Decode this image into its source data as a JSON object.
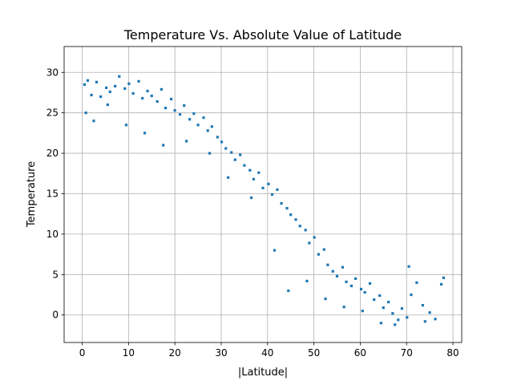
{
  "chart_data": {
    "type": "scatter",
    "title": "Temperature Vs. Absolute Value of Latitude",
    "xlabel": "|Latitude|",
    "ylabel": "Temperature",
    "xlim": [
      -3.9,
      81.9
    ],
    "ylim": [
      -3.4,
      33.2
    ],
    "xticks": [
      0,
      10,
      20,
      30,
      40,
      50,
      60,
      70,
      80
    ],
    "yticks": [
      0,
      5,
      10,
      15,
      20,
      25,
      30
    ],
    "grid": true,
    "marker_color": "#1f77b4",
    "legend": "none",
    "series": [
      {
        "x": [
          0.5,
          1.2,
          2.0,
          3.1,
          4.0,
          5.2,
          6.0,
          7.1,
          8.0,
          9.2,
          10.1,
          11.0,
          12.2,
          13.0,
          14.1,
          15.0,
          16.2,
          17.1,
          18.0,
          19.2,
          20.0,
          21.1,
          22.0,
          23.2,
          24.1,
          25.0,
          26.2,
          27.1,
          28.0,
          29.2,
          30.1,
          31.0,
          32.2,
          33.0,
          34.1,
          35.0,
          36.2,
          37.0,
          38.1,
          39.0,
          40.2,
          41.0,
          42.1,
          43.0,
          44.2,
          45.0,
          46.1,
          47.0,
          48.2,
          49.0,
          50.1,
          51.0,
          52.2,
          53.0,
          54.1,
          55.0,
          56.2,
          57.0,
          58.1,
          59.0,
          60.2,
          61.0,
          62.1,
          63.0,
          64.2,
          65.0,
          66.1,
          67.0,
          68.2,
          69.0,
          70.1,
          71.0,
          72.2,
          73.5,
          75.0,
          76.2,
          77.5,
          0.8,
          2.5,
          5.5,
          9.5,
          13.5,
          17.5,
          22.5,
          27.5,
          31.5,
          36.5,
          41.5,
          44.5,
          48.5,
          52.5,
          56.5,
          60.5,
          64.5,
          67.5,
          70.5,
          74.0,
          78.0
        ],
        "y": [
          28.5,
          29.0,
          27.2,
          28.8,
          27.0,
          28.1,
          27.6,
          28.3,
          29.5,
          28.0,
          28.6,
          27.4,
          28.9,
          26.8,
          27.7,
          27.1,
          26.4,
          27.9,
          25.6,
          26.7,
          25.3,
          24.8,
          25.9,
          24.2,
          24.9,
          23.5,
          24.4,
          22.8,
          23.3,
          22.0,
          21.4,
          20.6,
          20.1,
          19.2,
          19.8,
          18.5,
          17.9,
          16.8,
          17.6,
          15.7,
          16.2,
          14.9,
          15.5,
          13.8,
          13.2,
          12.4,
          11.8,
          11.0,
          10.5,
          8.9,
          9.6,
          7.5,
          8.1,
          6.2,
          5.4,
          4.8,
          5.9,
          4.1,
          3.6,
          4.5,
          3.2,
          2.8,
          3.9,
          1.9,
          2.4,
          0.9,
          1.6,
          0.2,
          -0.6,
          0.8,
          -0.3,
          2.5,
          4.0,
          1.2,
          0.3,
          -0.5,
          3.8,
          25.0,
          24.0,
          26.0,
          23.5,
          22.5,
          21.0,
          21.5,
          20.0,
          17.0,
          14.5,
          8.0,
          3.0,
          4.2,
          2.0,
          1.0,
          0.5,
          -1.0,
          -1.2,
          6.0,
          -0.8,
          4.6
        ]
      }
    ]
  }
}
